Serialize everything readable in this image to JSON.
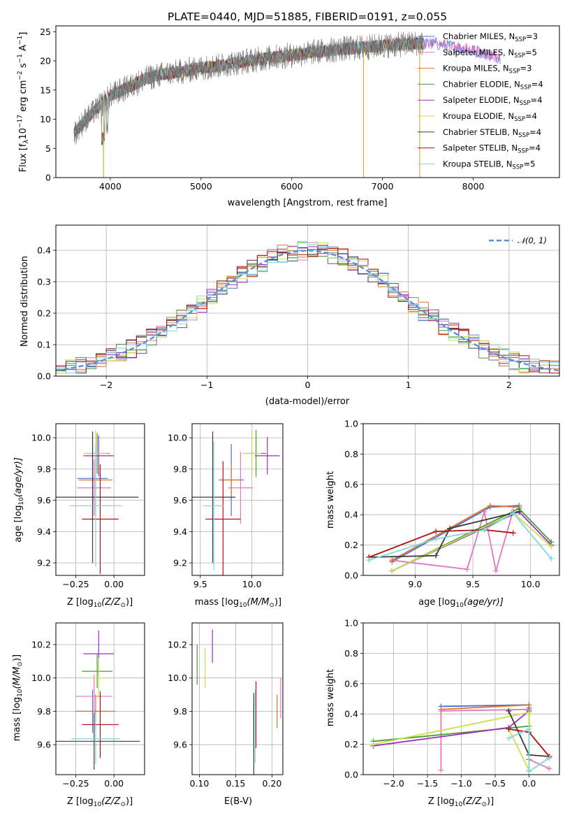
{
  "title": "PLATE=0440, MJD=51885, FIBERID=0191, z=0.055",
  "series": [
    {
      "name": "Chabrier MILES, N$_{SSP}$=3",
      "legend_main": "Chabrier MILES, N",
      "legend_sub": "SSP",
      "legend_tail": "=3",
      "color": "#4a6fd1"
    },
    {
      "name": "Salpeter MILES, N$_{SSP}$=5",
      "legend_main": "Salpeter MILES, N",
      "legend_sub": "SSP",
      "legend_tail": "=5",
      "color": "#e377c2"
    },
    {
      "name": "Kroupa MILES, N$_{SSP}$=3",
      "legend_main": "Kroupa MILES, N",
      "legend_sub": "SSP",
      "legend_tail": "=3",
      "color": "#e0752d"
    },
    {
      "name": "Chabrier ELODIE, N$_{SSP}$=4",
      "legend_main": "Chabrier ELODIE, N",
      "legend_sub": "SSP",
      "legend_tail": "=4",
      "color": "#4a9a3a"
    },
    {
      "name": "Salpeter ELODIE, N$_{SSP}$=4",
      "legend_main": "Salpeter ELODIE, N",
      "legend_sub": "SSP",
      "legend_tail": "=4",
      "color": "#9b2fc0"
    },
    {
      "name": "Kroupa ELODIE, N$_{SSP}$=4",
      "legend_main": "Kroupa ELODIE, N",
      "legend_sub": "SSP",
      "legend_tail": "=4",
      "color": "#c9e04a"
    },
    {
      "name": "Chabrier STELIB, N$_{SSP}$=4",
      "legend_main": "Chabrier STELIB, N",
      "legend_sub": "SSP",
      "legend_tail": "=4",
      "color": "#3a3a3a"
    },
    {
      "name": "Salpeter STELIB, N$_{SSP}$=4",
      "legend_main": "Salpeter STELIB, N",
      "legend_sub": "SSP",
      "legend_tail": "=4",
      "color": "#b01010"
    },
    {
      "name": "Kroupa STELIB, N$_{SSP}$=5",
      "legend_main": "Kroupa STELIB, N",
      "legend_sub": "SSP",
      "legend_tail": "=5",
      "color": "#7fd6e0"
    }
  ],
  "chart_data": [
    {
      "id": "spectrum",
      "type": "line",
      "xlabel": "wavelength [Angstrom, rest frame]",
      "ylabel_parts": {
        "a": "Flux [f",
        "b": "λ",
        "c": "10",
        "d": "−17",
        "e": " erg cm",
        "f": "−2",
        "g": " s",
        "h": "−1",
        "i": " A",
        "j": "−1",
        "k": "]"
      },
      "xlim": [
        3400,
        8950
      ],
      "ylim": [
        0,
        26
      ],
      "xticks": [
        "4000",
        "5000",
        "6000",
        "7000",
        "8000"
      ],
      "xtick_values": [
        4000,
        5000,
        6000,
        7000,
        8000
      ],
      "yticks": [
        "0",
        "5",
        "10",
        "15",
        "20",
        "25"
      ],
      "ytick_values": [
        0,
        5,
        10,
        15,
        20,
        25
      ],
      "continuum": {
        "x": [
          3600,
          3700,
          3800,
          3900,
          4000,
          4100,
          4200,
          4400,
          4600,
          4800,
          5000,
          5200,
          5400,
          5600,
          5800,
          6000,
          6200,
          6400,
          6600,
          6800,
          7000,
          7200,
          7400,
          7600,
          7800,
          8000,
          8200,
          8400,
          8600,
          8800
        ],
        "y": [
          7.5,
          9.5,
          11.0,
          12.5,
          14.0,
          14.8,
          15.5,
          17.0,
          17.8,
          18.2,
          18.8,
          19.2,
          19.7,
          20.2,
          20.6,
          21.0,
          21.4,
          21.8,
          22.1,
          22.3,
          22.6,
          22.8,
          23.0,
          22.9,
          22.4,
          21.8,
          21.0,
          20.1,
          19.3,
          18.6
        ]
      },
      "data_xlim": [
        3600,
        7450
      ]
    },
    {
      "id": "residuals",
      "type": "line",
      "xlabel": "(data-model)/error",
      "ylabel": "Normed distribution",
      "legend_label": "𝒩(0, 1)",
      "xlim": [
        -2.5,
        2.5
      ],
      "ylim": [
        0,
        0.48
      ],
      "xticks": [
        "−2",
        "−1",
        "0",
        "1",
        "2"
      ],
      "xtick_values": [
        -2,
        -1,
        0,
        1,
        2
      ],
      "yticks": [
        "0.0",
        "0.1",
        "0.2",
        "0.3",
        "0.4"
      ],
      "ytick_values": [
        0,
        0.1,
        0.2,
        0.3,
        0.4
      ],
      "bin_edges": [
        -2.5,
        -2.4,
        -2.3,
        -2.2,
        -2.1,
        -2.0,
        -1.9,
        -1.8,
        -1.7,
        -1.6,
        -1.5,
        -1.4,
        -1.3,
        -1.2,
        -1.1,
        -1.0,
        -0.9,
        -0.8,
        -0.7,
        -0.6,
        -0.5,
        -0.4,
        -0.3,
        -0.2,
        -0.1,
        0.0,
        0.1,
        0.2,
        0.3,
        0.4,
        0.5,
        0.6,
        0.7,
        0.8,
        0.9,
        1.0,
        1.1,
        1.2,
        1.3,
        1.4,
        1.5,
        1.6,
        1.7,
        1.8,
        1.9,
        2.0,
        2.1,
        2.2,
        2.3,
        2.4,
        2.5
      ]
    },
    {
      "id": "age_vs_Z",
      "type": "scatter",
      "xlabel_parts": {
        "a": "Z [log",
        "b": "10",
        "c": "(Z/Z",
        "d": "⊙",
        "e": ")]"
      },
      "ylabel_parts": {
        "a": "age  [log",
        "b": "10",
        "c": "(age/yr)]"
      },
      "xlim": [
        -0.38,
        0.2
      ],
      "ylim": [
        9.12,
        10.09
      ],
      "xticks": [
        "−0.25",
        "0.00"
      ],
      "xtick_values": [
        -0.25,
        0.0
      ],
      "yticks": [
        "9.2",
        "9.4",
        "9.6",
        "9.8",
        "10.0"
      ],
      "ytick_values": [
        9.2,
        9.4,
        9.6,
        9.8,
        10.0
      ],
      "points": [
        {
          "x": -0.14,
          "y": 9.74,
          "xerr": 0.1,
          "yerr": 0.23
        },
        {
          "x": -0.13,
          "y": 9.68,
          "xerr": 0.11,
          "yerr": 0.18
        },
        {
          "x": -0.12,
          "y": 9.73,
          "xerr": 0.11,
          "yerr": 0.22
        },
        {
          "x": -0.11,
          "y": 9.9,
          "xerr": 0.08,
          "yerr": 0.13
        },
        {
          "x": -0.1,
          "y": 9.885,
          "xerr": 0.1,
          "yerr": 0.13
        },
        {
          "x": -0.12,
          "y": 9.9,
          "xerr": 0.08,
          "yerr": 0.15
        },
        {
          "x": -0.14,
          "y": 9.62,
          "xerr": 0.3,
          "yerr": 0.42
        },
        {
          "x": -0.09,
          "y": 9.48,
          "xerr": 0.12,
          "yerr": 0.35
        },
        {
          "x": -0.12,
          "y": 9.565,
          "xerr": 0.17,
          "yerr": 0.39
        }
      ]
    },
    {
      "id": "age_vs_mass",
      "type": "scatter",
      "xlabel_parts": {
        "a": "mass [log",
        "b": "10",
        "c": "(M/M",
        "d": "⊙",
        "e": ")]"
      },
      "xlim": [
        9.42,
        10.3
      ],
      "ylim": [
        9.12,
        10.09
      ],
      "xticks": [
        "9.5",
        "10.0"
      ],
      "xtick_values": [
        9.5,
        10.0
      ],
      "yticks": [
        "9.2",
        "9.4",
        "9.6",
        "9.8",
        "10.0"
      ],
      "ytick_values": [
        9.2,
        9.4,
        9.6,
        9.8,
        10.0
      ],
      "points": [
        {
          "x": 9.8,
          "y": 9.73,
          "xerr": 0.12,
          "yerr": 0.23
        },
        {
          "x": 9.89,
          "y": 9.68,
          "xerr": 0.12,
          "yerr": 0.23
        },
        {
          "x": 9.8,
          "y": 9.73,
          "xerr": 0.1,
          "yerr": 0.1
        },
        {
          "x": 10.04,
          "y": 9.9,
          "xerr": 0.1,
          "yerr": 0.15
        },
        {
          "x": 10.15,
          "y": 9.885,
          "xerr": 0.12,
          "yerr": 0.12
        },
        {
          "x": 10.0,
          "y": 9.9,
          "xerr": 0.09,
          "yerr": 0.15
        },
        {
          "x": 9.62,
          "y": 9.62,
          "xerr": 0.22,
          "yerr": 0.42
        },
        {
          "x": 9.72,
          "y": 9.48,
          "xerr": 0.17,
          "yerr": 0.37
        },
        {
          "x": 9.63,
          "y": 9.565,
          "xerr": 0.1,
          "yerr": 0.41
        }
      ]
    },
    {
      "id": "mass_weight_vs_age",
      "type": "line",
      "xlabel_parts": {
        "a": "age  [log",
        "b": "10",
        "c": "(age/yr)]"
      },
      "ylabel": "mass weight",
      "xlim": [
        8.55,
        10.25
      ],
      "ylim": [
        0,
        1.0
      ],
      "xticks": [
        "9.0",
        "9.5",
        "10.0"
      ],
      "xtick_values": [
        9.0,
        9.5,
        10.0
      ],
      "yticks": [
        "0.0",
        "0.2",
        "0.4",
        "0.6",
        "0.8",
        "1.0"
      ],
      "ytick_values": [
        0,
        0.2,
        0.4,
        0.6,
        0.8,
        1.0
      ],
      "series": [
        {
          "x": [
            8.8,
            9.65,
            9.9
          ],
          "y": [
            0.09,
            0.45,
            0.46
          ]
        },
        {
          "x": [
            8.8,
            9.45,
            9.6,
            9.7,
            9.85
          ],
          "y": [
            0.1,
            0.04,
            0.42,
            0.03,
            0.43
          ]
        },
        {
          "x": [
            8.8,
            9.65,
            9.9
          ],
          "y": [
            0.1,
            0.46,
            0.45
          ]
        },
        {
          "x": [
            8.8,
            9.9,
            10.18
          ],
          "y": [
            0.03,
            0.44,
            0.22
          ]
        },
        {
          "x": [
            8.8,
            9.9,
            10.18
          ],
          "y": [
            0.03,
            0.42,
            0.2
          ]
        },
        {
          "x": [
            8.8,
            9.85,
            10.18
          ],
          "y": [
            0.03,
            0.41,
            0.19
          ]
        },
        {
          "x": [
            8.6,
            9.18,
            9.3,
            9.9
          ],
          "y": [
            0.12,
            0.13,
            0.31,
            0.42
          ]
        },
        {
          "x": [
            8.6,
            9.18,
            9.6,
            9.85
          ],
          "y": [
            0.12,
            0.29,
            0.3,
            0.28
          ]
        },
        {
          "x": [
            8.6,
            9.18,
            9.6,
            9.85,
            10.18
          ],
          "y": [
            0.1,
            0.24,
            0.3,
            0.41,
            0.11
          ]
        }
      ]
    },
    {
      "id": "mass_vs_Z",
      "type": "scatter",
      "xlabel_parts": {
        "a": "Z [log",
        "b": "10",
        "c": "(Z/Z",
        "d": "⊙",
        "e": ")]"
      },
      "ylabel_parts": {
        "a": "mass [log",
        "b": "10",
        "c": "(M/M",
        "d": "⊙",
        "e": ")]"
      },
      "xlim": [
        -0.38,
        0.2
      ],
      "ylim": [
        9.42,
        10.33
      ],
      "xticks": [
        "−0.25",
        "0.00"
      ],
      "xtick_values": [
        -0.25,
        0.0
      ],
      "yticks": [
        "9.6",
        "9.8",
        "10.0",
        "10.2"
      ],
      "ytick_values": [
        9.6,
        9.8,
        10.0,
        10.2
      ],
      "points": [
        {
          "x": -0.14,
          "y": 9.8,
          "xerr": 0.1,
          "yerr": 0.13
        },
        {
          "x": -0.13,
          "y": 9.89,
          "xerr": 0.12,
          "yerr": 0.13
        },
        {
          "x": -0.12,
          "y": 9.8,
          "xerr": 0.13,
          "yerr": 0.1
        },
        {
          "x": -0.11,
          "y": 10.04,
          "xerr": 0.1,
          "yerr": 0.1
        },
        {
          "x": -0.1,
          "y": 10.145,
          "xerr": 0.1,
          "yerr": 0.14
        },
        {
          "x": -0.1,
          "y": 10.0,
          "xerr": 0.07,
          "yerr": 0.12
        },
        {
          "x": -0.13,
          "y": 9.62,
          "xerr": 0.3,
          "yerr": 0.17
        },
        {
          "x": -0.09,
          "y": 9.72,
          "xerr": 0.12,
          "yerr": 0.2
        },
        {
          "x": -0.12,
          "y": 9.635,
          "xerr": 0.16,
          "yerr": 0.15
        }
      ]
    },
    {
      "id": "mass_vs_EBV",
      "type": "scatter",
      "xlabel": "E(B-V)",
      "xlim": [
        0.09,
        0.215
      ],
      "ylim": [
        9.42,
        10.33
      ],
      "xticks": [
        "0.10",
        "0.15",
        "0.20"
      ],
      "xtick_values": [
        0.1,
        0.15,
        0.2
      ],
      "yticks": [
        "9.6",
        "9.8",
        "10.0",
        "10.2"
      ],
      "ytick_values": [
        9.6,
        9.8,
        10.0,
        10.2
      ],
      "points": [
        {
          "x": 0.175,
          "y": 9.73,
          "xerr": 0,
          "yerr": 0.12
        },
        {
          "x": 0.212,
          "y": 9.88,
          "xerr": 0,
          "yerr": 0.12
        },
        {
          "x": 0.207,
          "y": 9.8,
          "xerr": 0,
          "yerr": 0.1
        },
        {
          "x": 0.097,
          "y": 10.08,
          "xerr": 0,
          "yerr": 0.12
        },
        {
          "x": 0.118,
          "y": 10.19,
          "xerr": 0,
          "yerr": 0.1
        },
        {
          "x": 0.108,
          "y": 10.06,
          "xerr": 0,
          "yerr": 0.12
        },
        {
          "x": 0.175,
          "y": 9.65,
          "xerr": 0,
          "yerr": 0.26
        },
        {
          "x": 0.178,
          "y": 9.78,
          "xerr": 0,
          "yerr": 0.2
        },
        {
          "x": 0.177,
          "y": 9.71,
          "xerr": 0,
          "yerr": 0.22
        }
      ]
    },
    {
      "id": "mass_weight_vs_Z",
      "type": "line",
      "xlabel_parts": {
        "a": "Z [log",
        "b": "10",
        "c": "(Z/Z",
        "d": "⊙",
        "e": ")]"
      },
      "ylabel": "mass weight",
      "xlim": [
        -2.45,
        0.45
      ],
      "ylim": [
        0,
        1.0
      ],
      "xticks": [
        "−2.0",
        "−1.5",
        "−1.0",
        "−0.5",
        "0.0"
      ],
      "xtick_values": [
        -2.0,
        -1.5,
        -1.0,
        -0.5,
        0.0
      ],
      "yticks": [
        "0.0",
        "0.2",
        "0.4",
        "0.6",
        "0.8",
        "1.0"
      ],
      "ytick_values": [
        0,
        0.2,
        0.4,
        0.6,
        0.8,
        1.0
      ],
      "series": [
        {
          "x": [
            -1.3,
            0.0,
            0.0
          ],
          "y": [
            0.45,
            0.46,
            0.1
          ]
        },
        {
          "x": [
            -1.3,
            -1.3,
            0.0,
            0.0,
            0.3
          ],
          "y": [
            0.03,
            0.42,
            0.43,
            0.1,
            0.04
          ]
        },
        {
          "x": [
            -1.3,
            0.0,
            0.0
          ],
          "y": [
            0.43,
            0.46,
            0.1
          ]
        },
        {
          "x": [
            -2.3,
            0.0,
            0.0
          ],
          "y": [
            0.22,
            0.32,
            0.44
          ]
        },
        {
          "x": [
            -2.3,
            -0.3,
            0.0
          ],
          "y": [
            0.19,
            0.31,
            0.42
          ]
        },
        {
          "x": [
            -2.3,
            0.0,
            0.0,
            -0.3
          ],
          "y": [
            0.2,
            0.41,
            0.03,
            0.3
          ]
        },
        {
          "x": [
            -0.3,
            0.0,
            0.3
          ],
          "y": [
            0.42,
            0.13,
            0.12
          ]
        },
        {
          "x": [
            -0.3,
            0.0,
            0.3,
            0.3
          ],
          "y": [
            0.3,
            0.28,
            0.12,
            0.11
          ]
        },
        {
          "x": [
            -0.3,
            0.0,
            0.0,
            0.3
          ],
          "y": [
            0.24,
            0.3,
            0.02,
            0.11
          ]
        }
      ]
    }
  ]
}
